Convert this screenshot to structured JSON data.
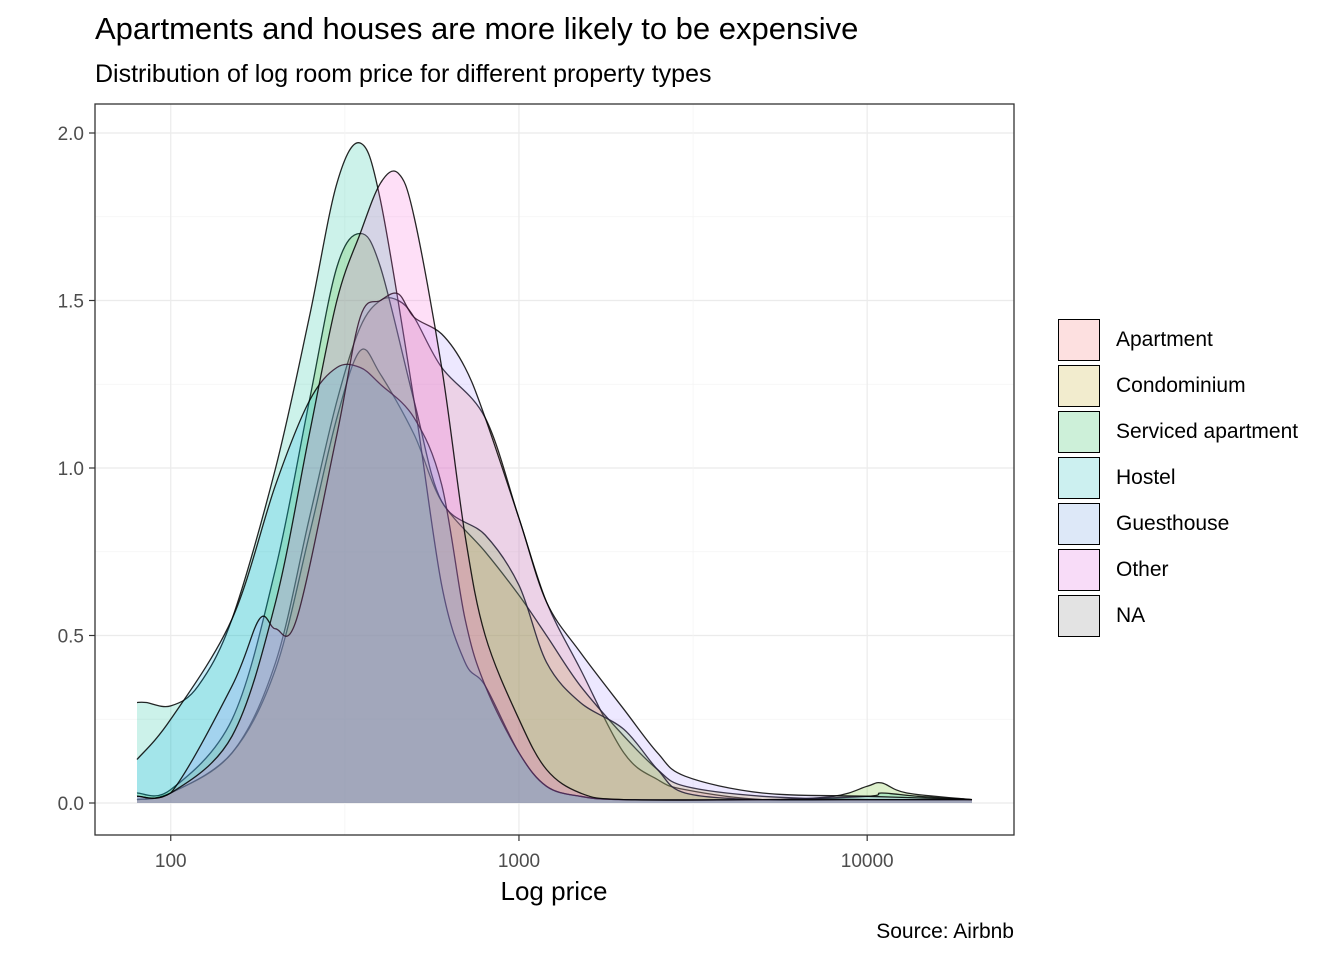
{
  "title": "Apartments and houses are more likely to be expensive",
  "subtitle": "Distribution of log room price for different property types",
  "caption": "Source: Airbnb",
  "chart_data": {
    "type": "area",
    "xlabel": "Log price",
    "ylabel": "",
    "x_scale": "log10",
    "xlim": [
      80,
      20000
    ],
    "ylim": [
      0,
      2.0
    ],
    "x_ticks": [
      100,
      1000,
      10000
    ],
    "x_tick_labels": [
      "100",
      "1000",
      "10000"
    ],
    "y_ticks": [
      0,
      0.5,
      1.0,
      1.5,
      2.0
    ],
    "y_tick_labels": [
      "0.0",
      "0.5",
      "1.0",
      "1.5",
      "2.0"
    ],
    "grid": true,
    "legend_position": "right",
    "series": [
      {
        "name": "Apartment",
        "color": "#F8766D",
        "points": [
          [
            80,
            0.01
          ],
          [
            100,
            0.03
          ],
          [
            150,
            0.15
          ],
          [
            200,
            0.42
          ],
          [
            250,
            0.85
          ],
          [
            300,
            1.2
          ],
          [
            350,
            1.42
          ],
          [
            400,
            1.5
          ],
          [
            450,
            1.5
          ],
          [
            500,
            1.45
          ],
          [
            600,
            1.3
          ],
          [
            800,
            1.15
          ],
          [
            1000,
            0.85
          ],
          [
            1200,
            0.6
          ],
          [
            1500,
            0.4
          ],
          [
            2000,
            0.15
          ],
          [
            2500,
            0.07
          ],
          [
            3000,
            0.04
          ],
          [
            5000,
            0.01
          ],
          [
            10000,
            0.01
          ],
          [
            20000,
            0.01
          ]
        ]
      },
      {
        "name": "Condominium",
        "color": "#C49A00",
        "points": [
          [
            80,
            0.01
          ],
          [
            100,
            0.03
          ],
          [
            150,
            0.15
          ],
          [
            200,
            0.4
          ],
          [
            250,
            0.8
          ],
          [
            300,
            1.15
          ],
          [
            350,
            1.35
          ],
          [
            400,
            1.28
          ],
          [
            500,
            1.1
          ],
          [
            600,
            0.9
          ],
          [
            800,
            0.75
          ],
          [
            1000,
            0.62
          ],
          [
            1200,
            0.5
          ],
          [
            1500,
            0.35
          ],
          [
            2000,
            0.2
          ],
          [
            2500,
            0.1
          ],
          [
            3000,
            0.05
          ],
          [
            5000,
            0.02
          ],
          [
            10000,
            0.01
          ],
          [
            20000,
            0.01
          ]
        ]
      },
      {
        "name": "Serviced apartment",
        "color": "#53B400",
        "points": [
          [
            80,
            0.03
          ],
          [
            100,
            0.04
          ],
          [
            150,
            0.25
          ],
          [
            200,
            0.7
          ],
          [
            250,
            1.2
          ],
          [
            300,
            1.6
          ],
          [
            350,
            1.7
          ],
          [
            400,
            1.6
          ],
          [
            500,
            1.2
          ],
          [
            600,
            0.9
          ],
          [
            800,
            0.8
          ],
          [
            1000,
            0.65
          ],
          [
            1200,
            0.42
          ],
          [
            1500,
            0.3
          ],
          [
            2000,
            0.22
          ],
          [
            2500,
            0.1
          ],
          [
            3000,
            0.03
          ],
          [
            5000,
            0.01
          ],
          [
            8000,
            0.02
          ],
          [
            10000,
            0.05
          ],
          [
            11000,
            0.06
          ],
          [
            13000,
            0.03
          ],
          [
            20000,
            0.01
          ]
        ]
      },
      {
        "name": "Hostel",
        "color": "#00C094",
        "points": [
          [
            80,
            0.3
          ],
          [
            85,
            0.3
          ],
          [
            100,
            0.29
          ],
          [
            120,
            0.35
          ],
          [
            150,
            0.55
          ],
          [
            200,
            1.0
          ],
          [
            250,
            1.45
          ],
          [
            300,
            1.85
          ],
          [
            350,
            1.97
          ],
          [
            400,
            1.8
          ],
          [
            500,
            1.2
          ],
          [
            600,
            0.65
          ],
          [
            700,
            0.42
          ],
          [
            800,
            0.35
          ],
          [
            1000,
            0.15
          ],
          [
            1200,
            0.05
          ],
          [
            1500,
            0.02
          ],
          [
            2000,
            0.01
          ],
          [
            5000,
            0.01
          ],
          [
            10000,
            0.02
          ],
          [
            11000,
            0.03
          ],
          [
            14000,
            0.02
          ],
          [
            20000,
            0.01
          ]
        ]
      },
      {
        "name": "Guesthouse",
        "color": "#00B6EB",
        "points": [
          [
            80,
            0.13
          ],
          [
            100,
            0.25
          ],
          [
            150,
            0.55
          ],
          [
            200,
            0.95
          ],
          [
            250,
            1.2
          ],
          [
            300,
            1.3
          ],
          [
            350,
            1.3
          ],
          [
            400,
            1.25
          ],
          [
            500,
            1.15
          ],
          [
            600,
            0.95
          ],
          [
            700,
            0.55
          ],
          [
            800,
            0.35
          ],
          [
            1000,
            0.15
          ],
          [
            1200,
            0.05
          ],
          [
            1500,
            0.02
          ],
          [
            2000,
            0.01
          ],
          [
            5000,
            0.01
          ],
          [
            10000,
            0.01
          ],
          [
            20000,
            0.01
          ]
        ]
      },
      {
        "name": "Other",
        "color": "#A58AFF",
        "points": [
          [
            80,
            0.02
          ],
          [
            100,
            0.03
          ],
          [
            150,
            0.35
          ],
          [
            180,
            0.55
          ],
          [
            200,
            0.52
          ],
          [
            230,
            0.55
          ],
          [
            300,
            1.1
          ],
          [
            350,
            1.45
          ],
          [
            400,
            1.5
          ],
          [
            450,
            1.52
          ],
          [
            500,
            1.45
          ],
          [
            600,
            1.4
          ],
          [
            700,
            1.3
          ],
          [
            800,
            1.15
          ],
          [
            1000,
            0.85
          ],
          [
            1200,
            0.6
          ],
          [
            1500,
            0.45
          ],
          [
            2000,
            0.28
          ],
          [
            2500,
            0.15
          ],
          [
            3000,
            0.08
          ],
          [
            5000,
            0.03
          ],
          [
            10000,
            0.02
          ],
          [
            20000,
            0.01
          ]
        ]
      },
      {
        "name": "NA",
        "color": "#FB61D7",
        "points": [
          [
            80,
            0.02
          ],
          [
            100,
            0.03
          ],
          [
            150,
            0.2
          ],
          [
            200,
            0.6
          ],
          [
            250,
            1.1
          ],
          [
            300,
            1.5
          ],
          [
            350,
            1.7
          ],
          [
            400,
            1.85
          ],
          [
            450,
            1.88
          ],
          [
            500,
            1.75
          ],
          [
            600,
            1.3
          ],
          [
            700,
            0.8
          ],
          [
            800,
            0.5
          ],
          [
            1000,
            0.25
          ],
          [
            1200,
            0.1
          ],
          [
            1500,
            0.03
          ],
          [
            2000,
            0.01
          ],
          [
            5000,
            0.01
          ],
          [
            10000,
            0.01
          ],
          [
            20000,
            0.01
          ]
        ]
      }
    ]
  },
  "legend_fills": [
    "#fde0e0",
    "#f2ecce",
    "#cdf0d9",
    "#ccf0f0",
    "#dde8f8",
    "#f8dcf8",
    "#e3e3e3"
  ]
}
